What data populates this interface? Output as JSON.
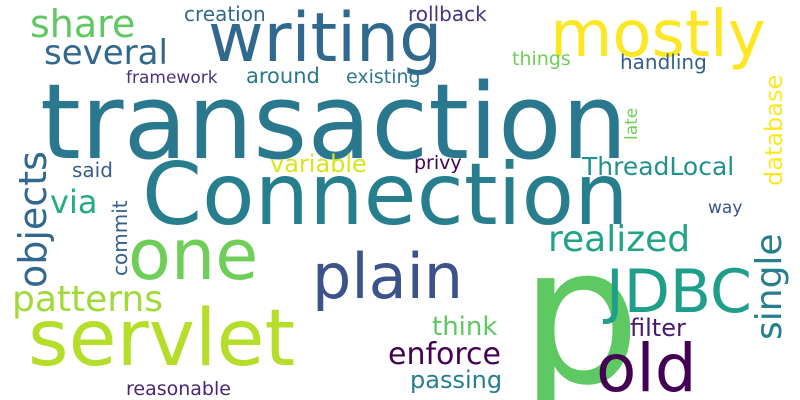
{
  "words": {
    "transaction": "transaction",
    "connection": "Connection",
    "p": "p",
    "servlet": "servlet",
    "writing": "writing",
    "mostly": "mostly",
    "one": "one",
    "plain": "plain",
    "old": "old",
    "jdbc": "JDBC",
    "share": "share",
    "several": "several",
    "patterns": "patterns",
    "objects": "objects",
    "realized": "realized",
    "single": "single",
    "database": "database",
    "threadlocal": "ThreadLocal",
    "enforce": "enforce",
    "passing": "passing",
    "think": "think",
    "filter": "filter",
    "variable": "variable",
    "via": "via",
    "creation": "creation",
    "rollback": "rollback",
    "framework": "framework",
    "around": "around",
    "existing": "existing",
    "things": "things",
    "handling": "handling",
    "late": "late",
    "said": "said",
    "privy": "privy",
    "commit": "commit",
    "way": "way",
    "reasonable": "reasonable"
  }
}
